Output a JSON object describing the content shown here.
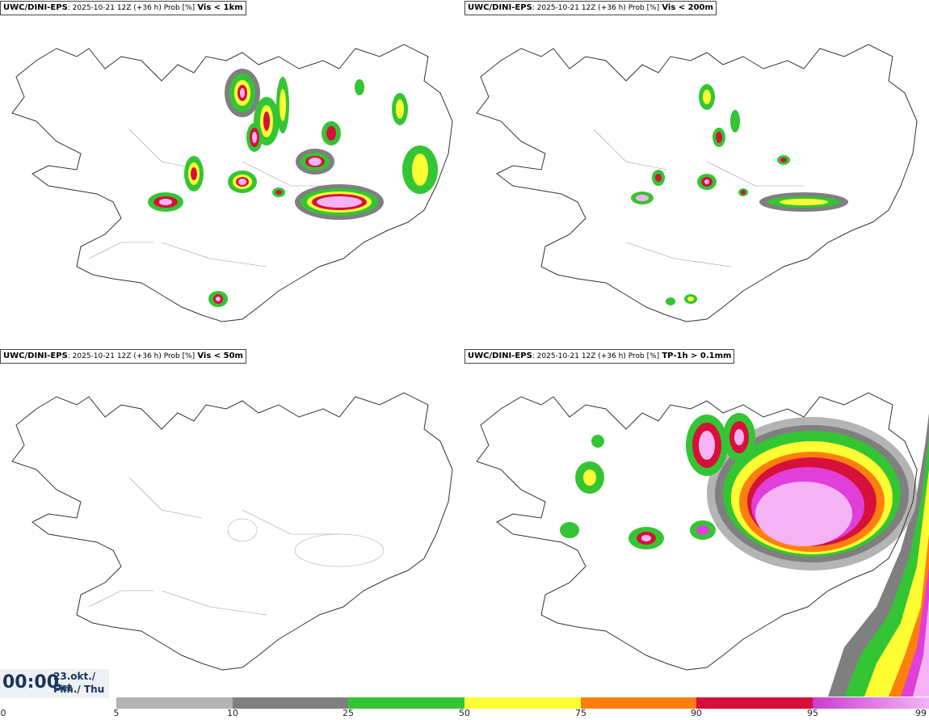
{
  "panels": [
    {
      "source": "UWC/DINI-EPS",
      "meta": ": 2025-10-21 12Z (+36 h) Prob [%]",
      "param": "Vis < 1km"
    },
    {
      "source": "UWC/DINI-EPS",
      "meta": ": 2025-10-21 12Z (+36 h) Prob [%]",
      "param": "Vis < 200m"
    },
    {
      "source": "UWC/DINI-EPS",
      "meta": ": 2025-10-21 12Z (+36 h) Prob [%]",
      "param": "Vis < 50m"
    },
    {
      "source": "UWC/DINI-EPS",
      "meta": ": 2025-10-21 12Z (+36 h) Prob [%]",
      "param": "TP-1h > 0.1mm"
    }
  ],
  "time": {
    "clock": "00:00",
    "date_line": "23.okt./ Oct",
    "day_line": "Fim./ Thu"
  },
  "colorbar": {
    "ticks": [
      "0",
      "5",
      "10",
      "25",
      "50",
      "75",
      "90",
      "95",
      "99"
    ],
    "bins": [
      {
        "color": "#b4b4b4"
      },
      {
        "color": "#7f7f7f"
      },
      {
        "color": "#34c534"
      },
      {
        "color": "#ffff33"
      },
      {
        "color": "#ff7f0e"
      },
      {
        "color": "#d6103a"
      },
      {
        "color": "#e03fd8"
      }
    ],
    "last_gradient_end": "#f5b3f5"
  },
  "map_region": "Iceland"
}
